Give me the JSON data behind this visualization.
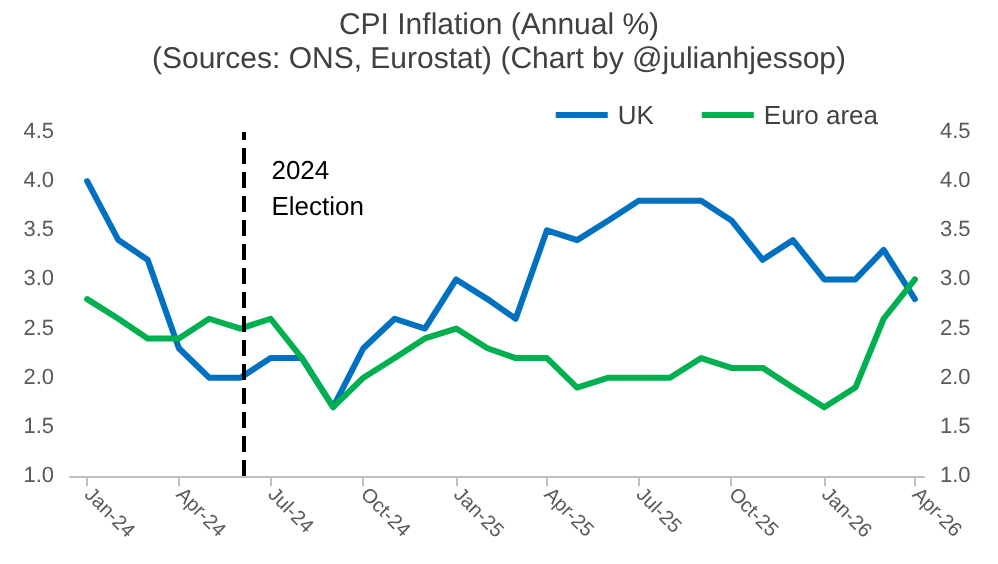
{
  "chart_data": {
    "type": "line",
    "title": "CPI Inflation (Annual %)",
    "subtitle": "(Sources: ONS, Eurostat) (Chart by @julianhjessop)",
    "x": [
      "2024-01",
      "2024-02",
      "2024-03",
      "2024-04",
      "2024-05",
      "2024-06",
      "2024-07",
      "2024-08",
      "2024-09",
      "2024-10",
      "2024-11",
      "2024-12",
      "2025-01",
      "2025-02",
      "2025-03",
      "2025-04",
      "2025-05",
      "2025-06",
      "2025-07",
      "2025-08",
      "2025-09",
      "2025-10",
      "2025-11",
      "2025-12",
      "2026-01",
      "2026-02",
      "2026-03",
      "2026-04"
    ],
    "series": [
      {
        "name": "UK",
        "color": "#0070c0",
        "values": [
          4.0,
          3.4,
          3.2,
          2.3,
          2.0,
          2.0,
          2.2,
          2.2,
          1.7,
          2.3,
          2.6,
          2.5,
          3.0,
          2.8,
          2.6,
          3.5,
          3.4,
          3.6,
          3.8,
          3.8,
          3.8,
          3.6,
          3.2,
          3.4,
          3.0,
          3.0,
          3.3,
          2.8
        ]
      },
      {
        "name": "Euro area",
        "color": "#00b050",
        "values": [
          2.8,
          2.6,
          2.4,
          2.4,
          2.6,
          2.5,
          2.6,
          2.2,
          1.7,
          2.0,
          2.2,
          2.4,
          2.5,
          2.3,
          2.2,
          2.2,
          1.9,
          2.0,
          2.0,
          2.0,
          2.2,
          2.1,
          2.1,
          1.9,
          1.7,
          1.9,
          2.6,
          3.0
        ]
      }
    ],
    "xlim": [
      "2023-12-15",
      "2026-04-10"
    ],
    "xticks": [
      {
        "value": "2024-01",
        "label": "Jan-24"
      },
      {
        "value": "2024-04",
        "label": "Apr-24"
      },
      {
        "value": "2024-07",
        "label": "Jul-24"
      },
      {
        "value": "2024-10",
        "label": "Oct-24"
      },
      {
        "value": "2025-01",
        "label": "Jan-25"
      },
      {
        "value": "2025-04",
        "label": "Apr-25"
      },
      {
        "value": "2025-07",
        "label": "Jul-25"
      },
      {
        "value": "2025-10",
        "label": "Oct-25"
      },
      {
        "value": "2026-01",
        "label": "Jan-26"
      },
      {
        "value": "2026-04",
        "label": "Apr-26"
      }
    ],
    "ylim": [
      1.0,
      4.5
    ],
    "yticks": [
      {
        "value": 1.0,
        "label": "1.0"
      },
      {
        "value": 1.5,
        "label": "1.5"
      },
      {
        "value": 2.0,
        "label": "2.0"
      },
      {
        "value": 2.5,
        "label": "2.5"
      },
      {
        "value": 3.0,
        "label": "3.0"
      },
      {
        "value": 3.5,
        "label": "3.5"
      },
      {
        "value": 4.0,
        "label": "4.0"
      },
      {
        "value": 4.5,
        "label": "4.5"
      }
    ],
    "y2lim": [
      1.0,
      4.5
    ],
    "y2ticks": [
      {
        "value": 1.0,
        "label": "1.0"
      },
      {
        "value": 1.5,
        "label": "1.5"
      },
      {
        "value": 2.0,
        "label": "2.0"
      },
      {
        "value": 2.5,
        "label": "2.5"
      },
      {
        "value": 3.0,
        "label": "3.0"
      },
      {
        "value": 3.5,
        "label": "3.5"
      },
      {
        "value": 4.0,
        "label": "4.0"
      },
      {
        "value": 4.5,
        "label": "4.5"
      }
    ],
    "ref_lines": [
      {
        "axis": "x",
        "value": "2024-06-04",
        "label": "2024\nElection",
        "color": "#000000",
        "line_style": "dashed"
      }
    ],
    "grid": false,
    "legend": "top right",
    "marker": "none",
    "line_style": "solid"
  }
}
